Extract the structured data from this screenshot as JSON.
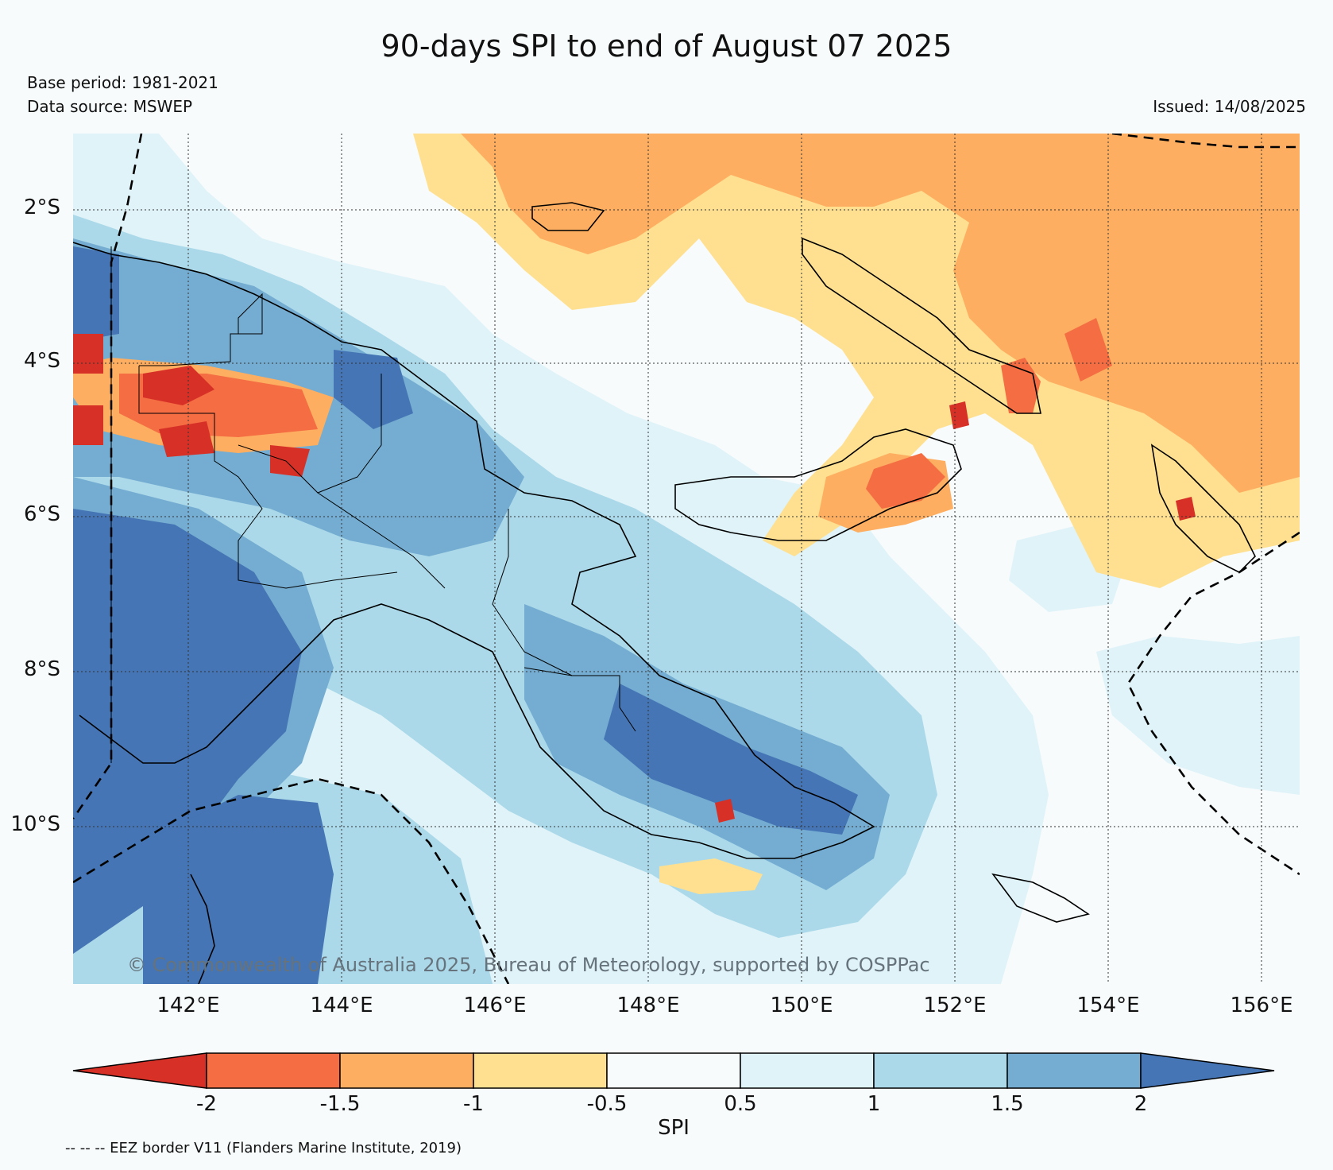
{
  "title": "90-days SPI to end of August 07 2025",
  "base_period": "Base period: 1981-2021",
  "data_source": "Data source: MSWEP",
  "issued": "Issued: 14/08/2025",
  "credit": "© Commonwealth of Australia 2025, Bureau of Meteorology, supported by COSPPac",
  "footnote": "-- -- -- EEZ border V11 (Flanders Marine Institute, 2019)",
  "lat_ticks": [
    "2°S",
    "4°S",
    "6°S",
    "8°S",
    "10°S"
  ],
  "lon_ticks": [
    "142°E",
    "144°E",
    "146°E",
    "148°E",
    "150°E",
    "152°E",
    "154°E",
    "156°E"
  ],
  "colorbar": {
    "title": "SPI",
    "labels": [
      "-2",
      "-1.5",
      "-1",
      "-0.5",
      "0.5",
      "1",
      "1.5",
      "2"
    ],
    "colors": [
      "#d73027",
      "#f46d43",
      "#fdae61",
      "#fee090",
      "#f7fbfc",
      "#e0f3f8",
      "#abd9e9",
      "#74add1",
      "#4575b4"
    ]
  },
  "map_extent": {
    "lon_min": 140.5,
    "lon_max": 156.5,
    "lat_min": -11.9,
    "lat_max": -1.0
  },
  "legend_items": [
    "EEZ border V11"
  ]
}
